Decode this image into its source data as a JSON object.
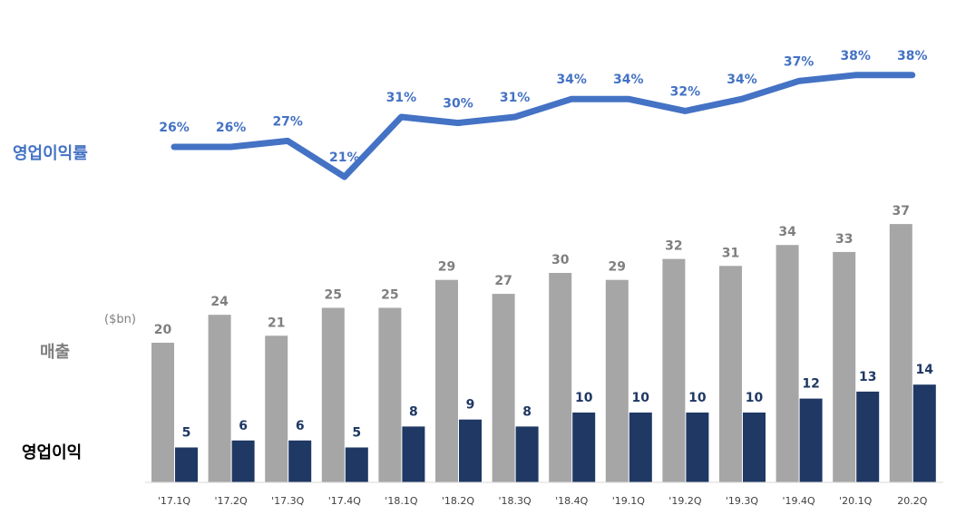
{
  "labels": {
    "margin_label": "영업이익률",
    "sales_label": "매출",
    "op_label": "영업이익",
    "unit": "($bn)"
  },
  "chart_data": {
    "type": "bar",
    "categories": [
      "'17.1Q",
      "'17.2Q",
      "'17.3Q",
      "'17.4Q",
      "'18.1Q",
      "'18.2Q",
      "'18.3Q",
      "'18.4Q",
      "'19.1Q",
      "'19.2Q",
      "'19.3Q",
      "'19.4Q",
      "'20.1Q",
      "20.2Q"
    ],
    "series": [
      {
        "name": "매출",
        "values": [
          20,
          24,
          21,
          25,
          25,
          29,
          27,
          30,
          29,
          32,
          31,
          34,
          33,
          37
        ],
        "color": "#a6a6a6",
        "label_color": "#7f7f7f"
      },
      {
        "name": "영업이익",
        "values": [
          5,
          6,
          6,
          5,
          8,
          9,
          8,
          10,
          10,
          10,
          10,
          12,
          13,
          14
        ],
        "color": "#1f3864",
        "label_color": "#1f3864"
      }
    ],
    "line": {
      "name": "영업이익률",
      "values": [
        26,
        26,
        27,
        21,
        31,
        30,
        31,
        34,
        34,
        32,
        34,
        37,
        38,
        38
      ],
      "labels": [
        "26%",
        "26%",
        "27%",
        "21%",
        "31%",
        "30%",
        "31%",
        "34%",
        "34%",
        "32%",
        "34%",
        "37%",
        "38%",
        "38%"
      ],
      "color": "#4472c4"
    },
    "grid": false
  }
}
